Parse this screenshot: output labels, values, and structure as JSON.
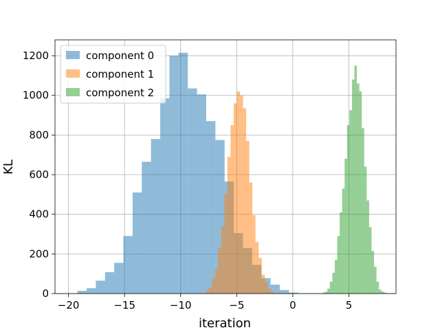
{
  "chart_data": {
    "type": "histogram",
    "title": "",
    "xlabel": "iteration",
    "ylabel": "KL",
    "xlim": [
      -21.2,
      9.2
    ],
    "ylim": [
      0,
      1280
    ],
    "xticks": [
      -20,
      -15,
      -10,
      -5,
      0,
      5
    ],
    "yticks": [
      0,
      200,
      400,
      600,
      800,
      1000,
      1200
    ],
    "grid": true,
    "legend_position": "top-left",
    "bar_alpha": 0.5,
    "series": [
      {
        "name": "component 0",
        "color": "#1f77b4",
        "bin_start": -19.2,
        "bin_width": 0.82,
        "counts": [
          14,
          27,
          65,
          108,
          155,
          290,
          510,
          665,
          780,
          985,
          1200,
          1215,
          1035,
          1005,
          870,
          775,
          565,
          305,
          230,
          145,
          78,
          45,
          18,
          5
        ]
      },
      {
        "name": "component 1",
        "color": "#ff7f0e",
        "bin_start": -8.05,
        "bin_width": 0.278,
        "counts": [
          2,
          12,
          30,
          75,
          125,
          230,
          340,
          505,
          690,
          850,
          960,
          1020,
          1000,
          935,
          770,
          560,
          395,
          260,
          180,
          95,
          60,
          25,
          10,
          3
        ]
      },
      {
        "name": "component 2",
        "color": "#2ca02c",
        "bin_start": 2.65,
        "bin_width": 0.2186,
        "counts": [
          5,
          10,
          25,
          60,
          105,
          170,
          290,
          410,
          530,
          680,
          850,
          925,
          1080,
          1150,
          1060,
          1020,
          835,
          640,
          470,
          335,
          215,
          135,
          60,
          20,
          10,
          5,
          1
        ]
      }
    ]
  }
}
